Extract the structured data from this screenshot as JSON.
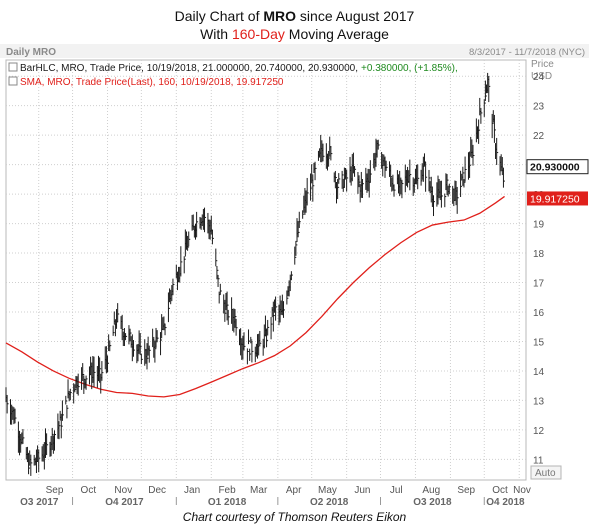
{
  "header": {
    "line1_pre": "Daily Chart of ",
    "line1_ticker": "MRO",
    "line1_post": " since August 2017",
    "line2_pre": "With ",
    "line2_highlight": "160-Day",
    "line2_post": " Moving Average"
  },
  "chart_data": {
    "type": "line",
    "panel_title": "Daily MRO",
    "date_range": "8/3/2017 - 11/7/2018 (NYC)",
    "legend": [
      {
        "label": "BarHLC, MRO, Trade Price, 10/19/2018, 21.000000, 20.740000, 20.930000,",
        "change": "+0.380000, (+1.85%),",
        "color": "#1a1a1a",
        "change_color": "#1f8a1f"
      },
      {
        "label": "SMA, MRO, Trade Price(Last), 160, 10/19/2018, 19.917250",
        "color": "#e0201b"
      }
    ],
    "y_axis": {
      "label_top": "Price",
      "label_unit": "USD",
      "ticks": [
        11,
        12,
        13,
        14,
        15,
        16,
        17,
        18,
        19,
        20,
        21,
        22,
        23,
        24
      ],
      "ylim": [
        10.3,
        24.55
      ],
      "tick_labels": [
        "11",
        "12",
        "13",
        "14",
        "15",
        "16",
        "17",
        "18",
        "19",
        "20",
        "21",
        "22",
        "23",
        "24"
      ]
    },
    "x_axis": {
      "month_labels": [
        "Sep",
        "Oct",
        "Nov",
        "Dec",
        "Jan",
        "Feb",
        "Mar",
        "Apr",
        "May",
        "Jun",
        "Jul",
        "Aug",
        "Sep",
        "Oct",
        "Nov"
      ],
      "quarter_labels": [
        "Q3 2017",
        "Q4 2017",
        "Q1 2018",
        "Q2 2018",
        "Q3 2018",
        "Q4 2018"
      ],
      "xlim": [
        "2017-08-03",
        "2018-11-07"
      ]
    },
    "last_price_label": "20.930000",
    "sma_label": "19.917250",
    "auto_label": "Auto",
    "series": [
      {
        "name": "BarHLC",
        "type": "hlc",
        "color": "#1a1a1a",
        "points": [
          [
            "2017-08-03",
            13.1
          ],
          [
            "2017-08-10",
            12.5
          ],
          [
            "2017-08-17",
            11.6
          ],
          [
            "2017-08-24",
            10.8
          ],
          [
            "2017-08-31",
            11.0
          ],
          [
            "2017-09-07",
            11.3
          ],
          [
            "2017-09-14",
            11.8
          ],
          [
            "2017-09-21",
            12.3
          ],
          [
            "2017-09-28",
            13.2
          ],
          [
            "2017-10-05",
            13.7
          ],
          [
            "2017-10-12",
            13.8
          ],
          [
            "2017-10-19",
            14.0
          ],
          [
            "2017-10-26",
            13.8
          ],
          [
            "2017-11-02",
            14.6
          ],
          [
            "2017-11-09",
            15.8
          ],
          [
            "2017-11-16",
            15.3
          ],
          [
            "2017-11-23",
            15.0
          ],
          [
            "2017-11-30",
            14.6
          ],
          [
            "2017-12-07",
            14.6
          ],
          [
            "2017-12-14",
            15.0
          ],
          [
            "2017-12-21",
            15.4
          ],
          [
            "2017-12-28",
            16.8
          ],
          [
            "2018-01-04",
            17.5
          ],
          [
            "2018-01-11",
            18.3
          ],
          [
            "2018-01-18",
            19.0
          ],
          [
            "2018-01-25",
            19.3
          ],
          [
            "2018-02-01",
            18.8
          ],
          [
            "2018-02-08",
            16.7
          ],
          [
            "2018-02-15",
            16.0
          ],
          [
            "2018-02-22",
            15.8
          ],
          [
            "2018-03-01",
            14.9
          ],
          [
            "2018-03-08",
            14.8
          ],
          [
            "2018-03-15",
            14.8
          ],
          [
            "2018-03-22",
            15.2
          ],
          [
            "2018-03-29",
            16.1
          ],
          [
            "2018-04-05",
            15.9
          ],
          [
            "2018-04-12",
            17.2
          ],
          [
            "2018-04-19",
            18.7
          ],
          [
            "2018-04-26",
            19.8
          ],
          [
            "2018-05-03",
            20.6
          ],
          [
            "2018-05-10",
            21.5
          ],
          [
            "2018-05-17",
            21.4
          ],
          [
            "2018-05-24",
            20.3
          ],
          [
            "2018-05-31",
            20.5
          ],
          [
            "2018-06-07",
            20.8
          ],
          [
            "2018-06-14",
            20.2
          ],
          [
            "2018-06-21",
            20.6
          ],
          [
            "2018-06-28",
            21.5
          ],
          [
            "2018-07-05",
            21.0
          ],
          [
            "2018-07-12",
            20.4
          ],
          [
            "2018-07-19",
            20.2
          ],
          [
            "2018-07-26",
            20.7
          ],
          [
            "2018-08-02",
            20.4
          ],
          [
            "2018-08-09",
            20.9
          ],
          [
            "2018-08-16",
            20.0
          ],
          [
            "2018-08-23",
            19.9
          ],
          [
            "2018-08-30",
            20.3
          ],
          [
            "2018-09-06",
            19.9
          ],
          [
            "2018-09-13",
            20.6
          ],
          [
            "2018-09-20",
            21.3
          ],
          [
            "2018-09-27",
            22.6
          ],
          [
            "2018-10-04",
            23.8
          ],
          [
            "2018-10-11",
            21.7
          ],
          [
            "2018-10-18",
            20.5
          ],
          [
            "2018-10-19",
            20.93
          ]
        ]
      },
      {
        "name": "SMA",
        "period": 160,
        "color": "#e0201b",
        "points": [
          [
            "2017-08-03",
            14.95
          ],
          [
            "2017-08-17",
            14.65
          ],
          [
            "2017-08-31",
            14.3
          ],
          [
            "2017-09-14",
            14.0
          ],
          [
            "2017-09-28",
            13.75
          ],
          [
            "2017-10-12",
            13.55
          ],
          [
            "2017-10-26",
            13.38
          ],
          [
            "2017-11-09",
            13.27
          ],
          [
            "2017-11-23",
            13.24
          ],
          [
            "2017-12-07",
            13.15
          ],
          [
            "2017-12-21",
            13.12
          ],
          [
            "2018-01-04",
            13.2
          ],
          [
            "2018-01-18",
            13.4
          ],
          [
            "2018-02-01",
            13.62
          ],
          [
            "2018-02-15",
            13.85
          ],
          [
            "2018-03-01",
            14.08
          ],
          [
            "2018-03-15",
            14.28
          ],
          [
            "2018-03-29",
            14.52
          ],
          [
            "2018-04-12",
            14.85
          ],
          [
            "2018-04-26",
            15.3
          ],
          [
            "2018-05-10",
            15.85
          ],
          [
            "2018-05-24",
            16.45
          ],
          [
            "2018-06-07",
            17.0
          ],
          [
            "2018-06-21",
            17.5
          ],
          [
            "2018-07-05",
            17.95
          ],
          [
            "2018-07-19",
            18.35
          ],
          [
            "2018-08-02",
            18.7
          ],
          [
            "2018-08-16",
            18.95
          ],
          [
            "2018-08-30",
            19.05
          ],
          [
            "2018-09-13",
            19.12
          ],
          [
            "2018-09-27",
            19.35
          ],
          [
            "2018-10-11",
            19.7
          ],
          [
            "2018-10-19",
            19.92
          ]
        ]
      }
    ]
  },
  "caption": "Chart courtesy of Thomson Reuters Eikon",
  "colors": {
    "price": "#1a1a1a",
    "sma": "#e0201b",
    "change": "#1f8a1f",
    "grid": "#cfcfcf",
    "label_bg_last": "#ffffff",
    "label_bg_sma": "#e0201b"
  }
}
